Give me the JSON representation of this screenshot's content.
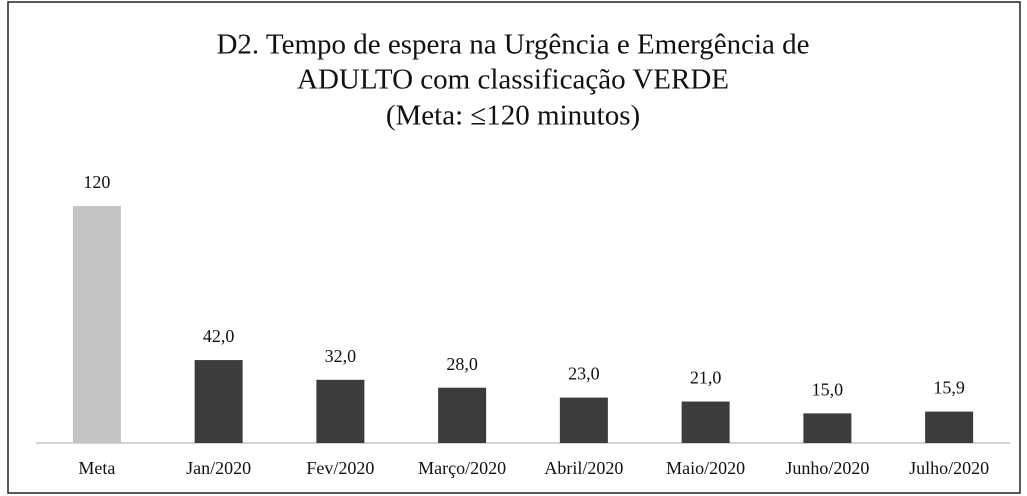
{
  "chart_data": {
    "type": "bar",
    "title": [
      "D2. Tempo de espera na Urgência e Emergência de",
      "ADULTO com classificação VERDE"
    ],
    "subtitle": "(Meta: ≤120 minutos)",
    "categories": [
      "Meta",
      "Jan/2020",
      "Fev/2020",
      "Março/2020",
      "Abril/2020",
      "Maio/2020",
      "Junho/2020",
      "Julho/2020"
    ],
    "values": [
      120,
      42,
      32,
      28,
      23,
      21,
      15,
      15.9
    ],
    "value_labels": [
      "120",
      "42,0",
      "32,0",
      "28,0",
      "23,0",
      "21,0",
      "15,0",
      "15,9"
    ],
    "colors": [
      "#c4c4c4",
      "#3c3c3c",
      "#3c3c3c",
      "#3c3c3c",
      "#3c3c3c",
      "#3c3c3c",
      "#3c3c3c",
      "#3c3c3c"
    ],
    "ylim": [
      0,
      120
    ]
  }
}
